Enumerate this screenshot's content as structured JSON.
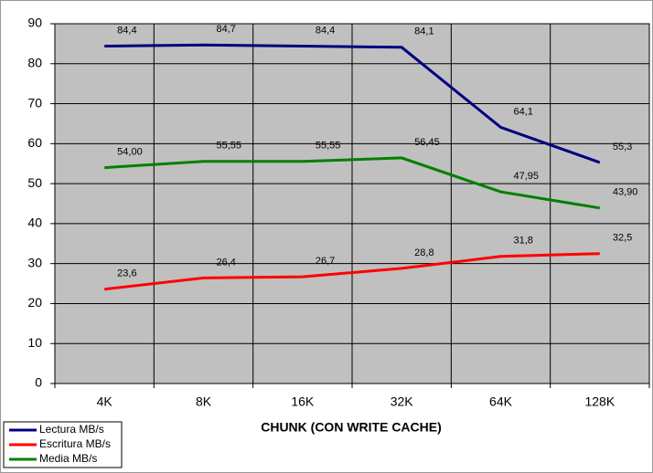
{
  "chart_data": {
    "type": "line",
    "x_label": "CHUNK (CON WRITE CACHE)",
    "categories": [
      "4K",
      "8K",
      "16K",
      "32K",
      "64K",
      "128K"
    ],
    "series": [
      {
        "name": "Lectura MB/s",
        "color": "#000080",
        "values": [
          84.4,
          84.7,
          84.4,
          84.1,
          64.1,
          55.3
        ],
        "value_labels": [
          "84,4",
          "84,7",
          "84,4",
          "84,1",
          "64,1",
          "55,3"
        ]
      },
      {
        "name": "Escritura MB/s",
        "color": "#ff0000",
        "values": [
          23.6,
          26.4,
          26.7,
          28.8,
          31.8,
          32.5
        ],
        "value_labels": [
          "23,6",
          "26,4",
          "26,7",
          "28,8",
          "31,8",
          "32,5"
        ]
      },
      {
        "name": "Media MB/s",
        "color": "#008000",
        "values": [
          54.0,
          55.55,
          55.55,
          56.45,
          47.95,
          43.9
        ],
        "value_labels": [
          "54,00",
          "55,55",
          "55,55",
          "56,45",
          "47,95",
          "43,90"
        ]
      }
    ],
    "ylim": [
      0,
      90
    ],
    "yticks": [
      0,
      10,
      20,
      30,
      40,
      50,
      60,
      70,
      80,
      90
    ],
    "grid": true,
    "legend": "bottom-left",
    "plot_background": "#c0c0c0"
  }
}
